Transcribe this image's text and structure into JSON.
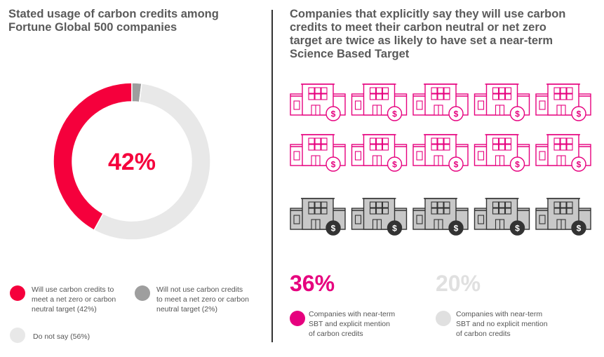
{
  "chart_data": [
    {
      "type": "pie",
      "title": "Stated usage of carbon credits among\nFortune Global 500 companies",
      "center_label": "42%",
      "slices": [
        {
          "label": "Will use carbon credits to\nmeet a net zero or carbon\nneutral target (42%)",
          "value": 42,
          "color": "#f5003c"
        },
        {
          "label": "Will not use carbon credits\nto meet a net zero or carbon\nneutral target (2%)",
          "value": 2,
          "color": "#9e9e9e"
        },
        {
          "label": "Do not say (56%)",
          "value": 56,
          "color": "#e8e8e8"
        }
      ]
    },
    {
      "type": "pictogram",
      "title": "Companies that explicitly say they will use carbon\ncredits to meet their carbon neutral or net zero\ntarget are twice as likely to have set a near-term\nScience Based Target",
      "rows": [
        {
          "count": 5,
          "color": "#e6007e"
        },
        {
          "count": 5,
          "color": "#e6007e"
        },
        {
          "count": 5,
          "color": "#8a8a8a"
        }
      ],
      "stats": [
        {
          "value": "36%",
          "label": "Companies with near-term\nSBT and explicit mention\nof carbon credits",
          "color": "#e6007e"
        },
        {
          "value": "20%",
          "label": "Companies with near-term\nSBT and no explicit mention\nof carbon credits",
          "color": "#e0e0e0"
        }
      ]
    }
  ],
  "icons": {
    "building": "building-dollar-icon"
  }
}
